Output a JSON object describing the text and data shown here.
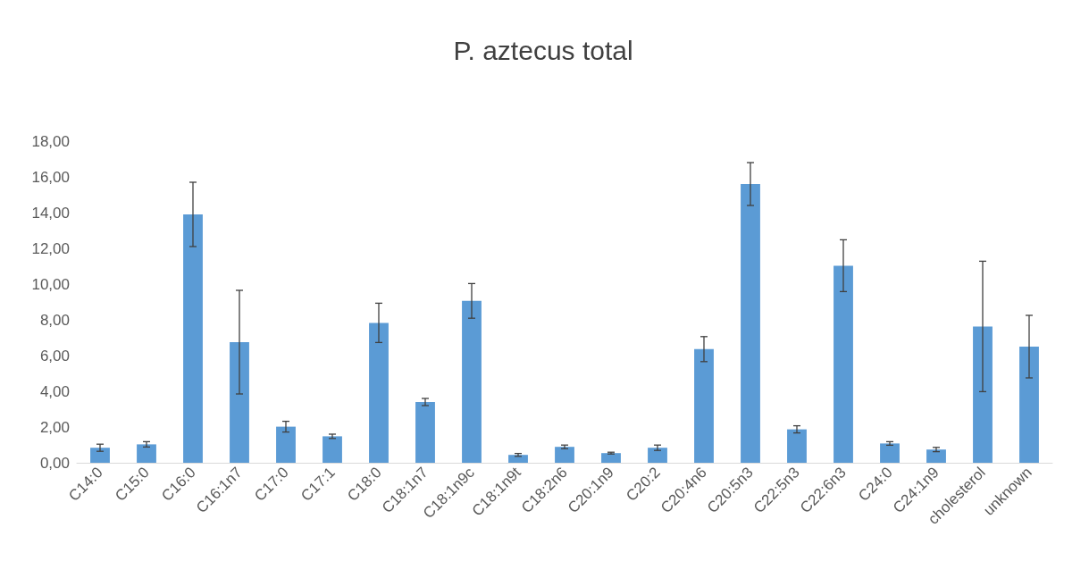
{
  "chart_data": {
    "type": "bar",
    "title": "P. aztecus total",
    "categories": [
      "C14:0",
      "C15:0",
      "C16:0",
      "C16:1n7",
      "C17:0",
      "C17:1",
      "C18:0",
      "C18:1n7",
      "C18:1n9c",
      "C18:1n9t",
      "C18:2n6",
      "C20:1n9",
      "C20:2",
      "C20:4n6",
      "C20:5n3",
      "C22:5n3",
      "C22:6n3",
      "C24:0",
      "C24:1n9",
      "cholesterol",
      "unknown"
    ],
    "values": [
      0.84,
      1.03,
      13.9,
      6.75,
      2.02,
      1.48,
      7.83,
      3.4,
      9.06,
      0.44,
      0.89,
      0.54,
      0.84,
      6.36,
      15.6,
      1.87,
      11.03,
      1.08,
      0.74,
      7.63,
      6.5
    ],
    "errors": [
      0.2,
      0.15,
      1.8,
      2.9,
      0.3,
      0.12,
      1.1,
      0.2,
      0.97,
      0.08,
      0.1,
      0.05,
      0.15,
      0.7,
      1.2,
      0.2,
      1.45,
      0.1,
      0.12,
      3.65,
      1.75
    ],
    "color": "#5b9bd5",
    "ylim": [
      0,
      18
    ],
    "yticks": [
      {
        "value": 0,
        "label": "0,00"
      },
      {
        "value": 2,
        "label": "2,00"
      },
      {
        "value": 4,
        "label": "4,00"
      },
      {
        "value": 6,
        "label": "6,00"
      },
      {
        "value": 8,
        "label": "8,00"
      },
      {
        "value": 10,
        "label": "10,00"
      },
      {
        "value": 12,
        "label": "12,00"
      },
      {
        "value": 14,
        "label": "14,00"
      },
      {
        "value": 16,
        "label": "16,00"
      },
      {
        "value": 18,
        "label": "18,00"
      }
    ],
    "grid": false
  }
}
